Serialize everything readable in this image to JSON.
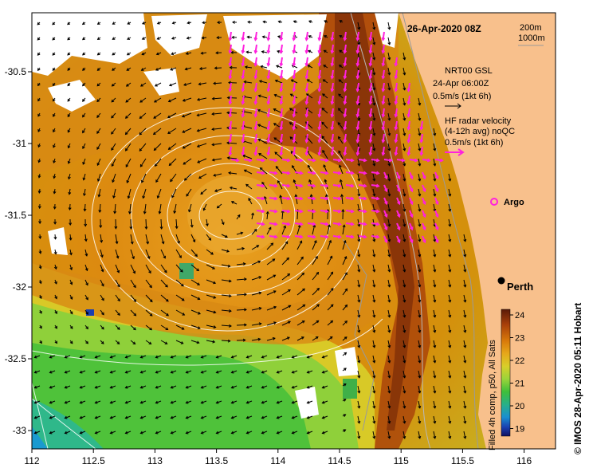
{
  "title": "26-Apr-2020 08Z",
  "depth_legend": {
    "line1": "200m",
    "line2": "1000m"
  },
  "gsl_legend": {
    "line1": "NRT00 GSL",
    "line2": "24-Apr 06:00Z",
    "line3": "0.5m/s (1kt 6h)"
  },
  "hf_legend": {
    "line1": "HF radar velocity",
    "line2": "(4-12h avg) noQC",
    "line3": "0.5m/s (1kt 6h)"
  },
  "argo_label": "Argo",
  "city_label": "Perth",
  "colorbar": {
    "caption": "Filled 4h comp, p50, All Sats",
    "ticks": [
      "24",
      "23",
      "22",
      "21",
      "20",
      "19"
    ],
    "stops": [
      "#5a1a08",
      "#a8400a",
      "#d97a0a",
      "#e6a81a",
      "#d8cf2a",
      "#9ad43a",
      "#3fbf3a",
      "#28b088",
      "#1a8fd0",
      "#1a3fb0",
      "#101060"
    ]
  },
  "credit": "© IMOS 28-Apr-2020 05:11 Hobart",
  "x_axis": {
    "ticks": [
      "112",
      "112.5",
      "113",
      "113.5",
      "114",
      "114.5",
      "115",
      "115.5",
      "116"
    ]
  },
  "y_axis": {
    "ticks": [
      "-30.5",
      "-31",
      "-31.5",
      "-32",
      "-32.5",
      "-33"
    ]
  },
  "colors": {
    "land": "#f8c08c",
    "hf_arrow": "#ff22dd",
    "gsl_arrow": "#000000",
    "contour": "#ffffff",
    "bathy": "#9a9a9a"
  }
}
